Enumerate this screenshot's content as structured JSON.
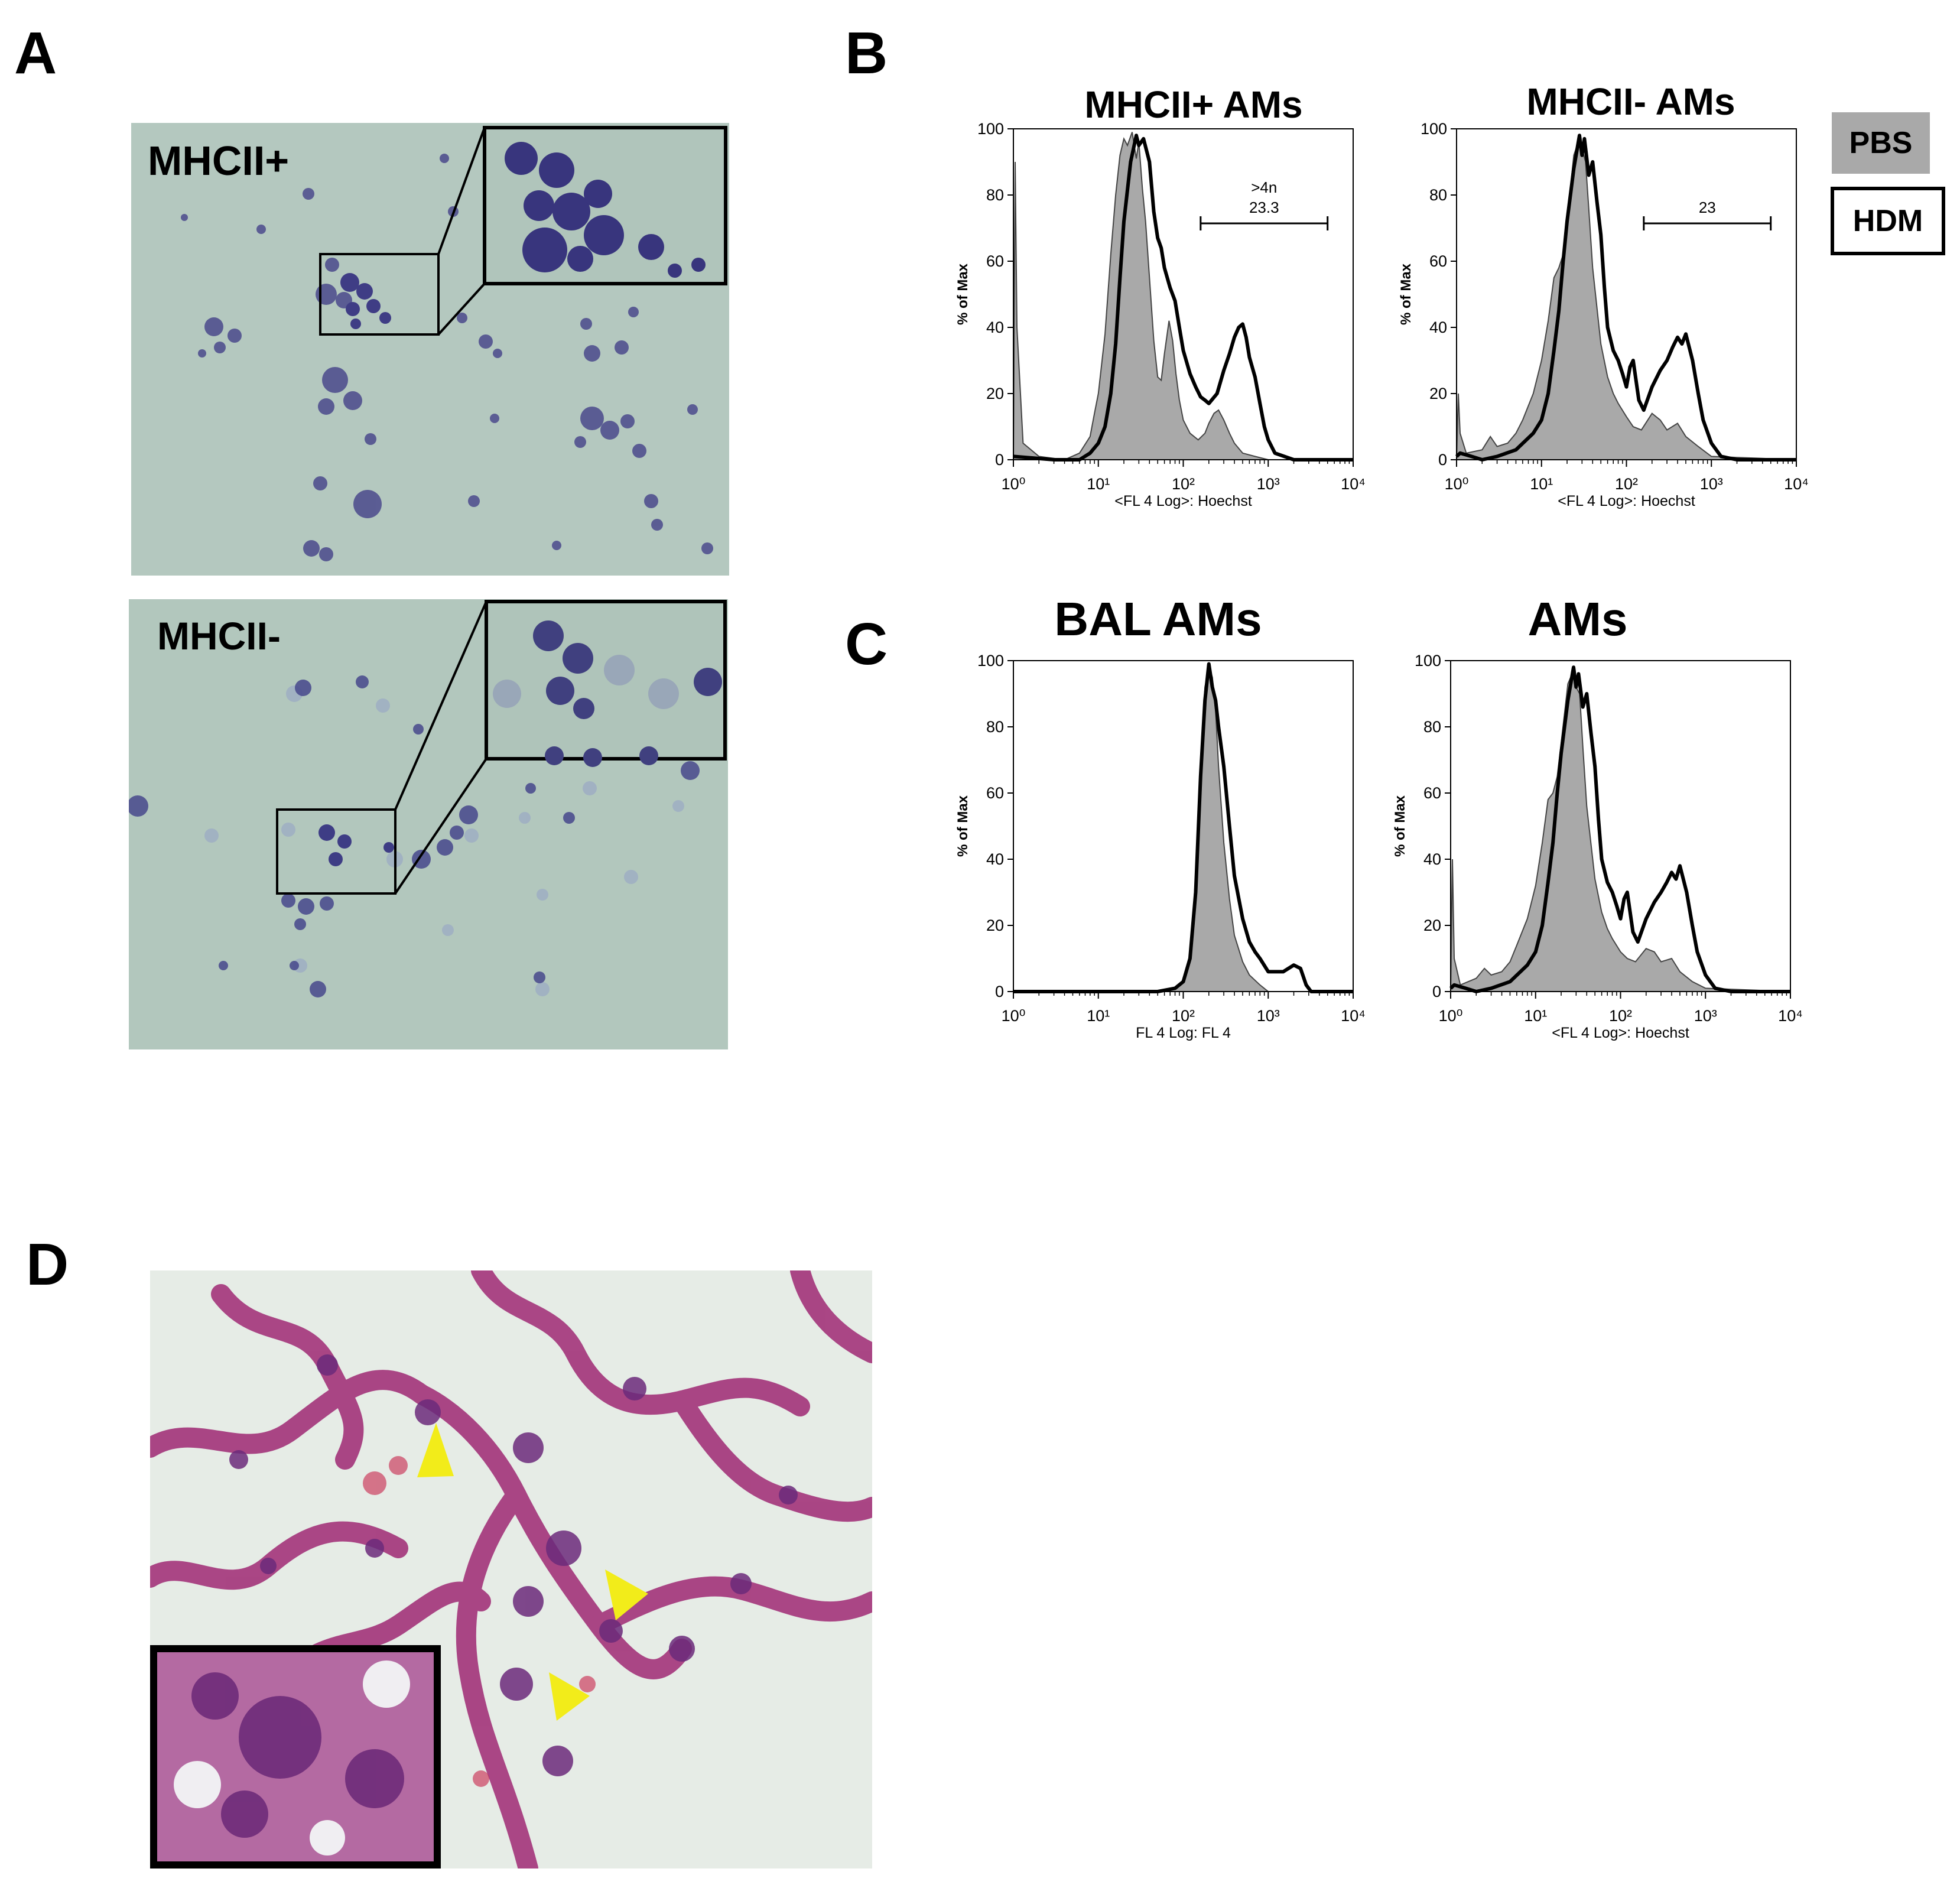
{
  "panels": {
    "a": {
      "letter": "A",
      "top_label": "MHCII+",
      "bottom_label": "MHCII-"
    },
    "b": {
      "letter": "B"
    },
    "c": {
      "letter": "C"
    },
    "d": {
      "letter": "D"
    }
  },
  "legend": {
    "pbs_label": "PBS",
    "hdm_label": "HDM",
    "pbs_color": "#a9a9a9",
    "hdm_color": "#000000"
  },
  "chart_data": [
    {
      "type": "area",
      "panel": "B",
      "title": "MHCII+ AMs",
      "xlabel": "<FL 4 Log>: Hoechst",
      "ylabel": "% of Max",
      "xscale": "log",
      "xlim": [
        1,
        10000
      ],
      "ylim": [
        0,
        100
      ],
      "y_ticks": [
        "0",
        "20",
        "40",
        "60",
        "80",
        "100"
      ],
      "gate": {
        "label_line1": ">4n",
        "label_line2": "23.3",
        "range": [
          160,
          5000
        ]
      },
      "series": [
        {
          "name": "PBS",
          "style": "filled",
          "x": [
            1,
            1.05,
            1.1,
            1.3,
            2,
            4,
            6,
            8,
            9,
            10,
            12,
            14,
            16,
            18,
            20,
            22,
            25,
            28,
            30,
            33,
            36,
            40,
            45,
            50,
            55,
            60,
            68,
            75,
            82,
            90,
            100,
            120,
            150,
            180,
            200,
            230,
            260,
            300,
            350,
            400,
            500,
            700,
            1000,
            2000,
            10000
          ],
          "y": [
            0,
            90,
            40,
            5,
            1,
            0,
            2,
            7,
            14,
            20,
            38,
            62,
            80,
            92,
            97,
            95,
            99,
            91,
            96,
            82,
            72,
            55,
            36,
            25,
            24,
            32,
            42,
            36,
            26,
            18,
            12,
            8,
            6,
            8,
            11,
            14,
            15,
            12,
            8,
            5,
            2,
            1,
            0,
            0,
            0
          ]
        },
        {
          "name": "HDM",
          "style": "line",
          "x": [
            1,
            3,
            6,
            8,
            10,
            12,
            14,
            16,
            18,
            20,
            24,
            28,
            30,
            34,
            40,
            45,
            50,
            55,
            60,
            70,
            80,
            90,
            100,
            120,
            140,
            160,
            180,
            200,
            250,
            300,
            350,
            400,
            450,
            500,
            550,
            600,
            700,
            800,
            900,
            1000,
            1200,
            2000,
            10000
          ],
          "y": [
            1,
            0,
            0,
            2,
            5,
            10,
            20,
            35,
            55,
            72,
            90,
            98,
            95,
            97,
            90,
            75,
            67,
            64,
            58,
            52,
            48,
            40,
            33,
            26,
            22,
            19,
            18,
            17,
            20,
            27,
            32,
            37,
            40,
            41,
            37,
            31,
            25,
            17,
            10,
            6,
            2,
            0,
            0
          ]
        }
      ]
    },
    {
      "type": "area",
      "panel": "B",
      "title": "MHCII- AMs",
      "xlabel": "<FL 4 Log>: Hoechst",
      "ylabel": "% of Max",
      "xscale": "log",
      "xlim": [
        1,
        10000
      ],
      "ylim": [
        0,
        100
      ],
      "y_ticks": [
        "0",
        "20",
        "40",
        "60",
        "80",
        "100"
      ],
      "gate": {
        "label_line1": "23",
        "label_line2": "",
        "range": [
          160,
          5000
        ]
      },
      "series": [
        {
          "name": "PBS",
          "style": "filled",
          "x": [
            1,
            1.05,
            1.1,
            1.3,
            2,
            2.5,
            3,
            4,
            5,
            6,
            8,
            10,
            12,
            14,
            16,
            18,
            20,
            24,
            28,
            30,
            33,
            36,
            40,
            50,
            60,
            70,
            80,
            100,
            120,
            150,
            200,
            250,
            300,
            400,
            500,
            700,
            1000,
            10000
          ],
          "y": [
            0,
            20,
            8,
            2,
            3,
            7,
            4,
            5,
            8,
            12,
            20,
            30,
            42,
            55,
            58,
            62,
            72,
            92,
            97,
            94,
            90,
            76,
            58,
            35,
            25,
            20,
            17,
            13,
            10,
            9,
            14,
            12,
            9,
            11,
            7,
            4,
            1,
            0
          ]
        },
        {
          "name": "HDM",
          "style": "line",
          "x": [
            1,
            1.1,
            1.5,
            2,
            3,
            5,
            8,
            10,
            12,
            14,
            16,
            18,
            20,
            24,
            28,
            30,
            32,
            36,
            40,
            45,
            50,
            55,
            60,
            70,
            80,
            90,
            100,
            110,
            120,
            140,
            160,
            200,
            250,
            300,
            350,
            400,
            450,
            500,
            600,
            700,
            800,
            1000,
            1300,
            2000,
            10000
          ],
          "y": [
            1,
            2,
            1,
            0,
            1,
            3,
            8,
            12,
            20,
            33,
            45,
            60,
            72,
            88,
            98,
            92,
            97,
            86,
            90,
            78,
            68,
            52,
            40,
            33,
            30,
            26,
            22,
            28,
            30,
            18,
            15,
            22,
            27,
            30,
            34,
            37,
            35,
            38,
            30,
            20,
            12,
            5,
            1,
            0,
            0
          ]
        }
      ]
    },
    {
      "type": "area",
      "panel": "C",
      "title": "BAL AMs",
      "xlabel": "FL 4 Log: FL 4",
      "ylabel": "% of Max",
      "xscale": "log",
      "xlim": [
        1,
        10000
      ],
      "ylim": [
        0,
        100
      ],
      "y_ticks": [
        "0",
        "20",
        "40",
        "60",
        "80",
        "100"
      ],
      "series": [
        {
          "name": "PBS",
          "style": "filled",
          "x": [
            1,
            50,
            80,
            100,
            120,
            140,
            160,
            180,
            200,
            220,
            240,
            260,
            300,
            350,
            400,
            500,
            600,
            800,
            1000,
            10000
          ],
          "y": [
            0,
            0,
            1,
            3,
            10,
            35,
            70,
            92,
            98,
            95,
            85,
            68,
            45,
            28,
            17,
            9,
            5,
            2,
            0,
            0
          ]
        },
        {
          "name": "HDM",
          "style": "line",
          "x": [
            1,
            50,
            80,
            100,
            120,
            140,
            160,
            180,
            200,
            220,
            240,
            260,
            300,
            350,
            400,
            500,
            600,
            700,
            800,
            1000,
            1500,
            2000,
            2400,
            2800,
            3200,
            10000
          ],
          "y": [
            0,
            0,
            1,
            3,
            10,
            30,
            65,
            88,
            99,
            92,
            88,
            80,
            68,
            50,
            35,
            22,
            15,
            12,
            10,
            6,
            6,
            8,
            7,
            2,
            0,
            0
          ]
        }
      ]
    },
    {
      "type": "area",
      "panel": "C",
      "title": "AMs",
      "xlabel": "<FL 4 Log>: Hoechst",
      "ylabel": "% of Max",
      "xscale": "log",
      "xlim": [
        1,
        10000
      ],
      "ylim": [
        0,
        100
      ],
      "y_ticks": [
        "0",
        "20",
        "40",
        "60",
        "80",
        "100"
      ],
      "series": [
        {
          "name": "PBS",
          "style": "filled",
          "x": [
            1,
            1.05,
            1.1,
            1.3,
            2,
            2.5,
            3,
            4,
            5,
            6,
            8,
            10,
            12,
            14,
            16,
            18,
            20,
            24,
            28,
            30,
            33,
            36,
            40,
            50,
            60,
            70,
            80,
            100,
            120,
            150,
            200,
            250,
            300,
            400,
            500,
            700,
            1000,
            10000
          ],
          "y": [
            0,
            40,
            10,
            2,
            4,
            7,
            5,
            6,
            9,
            14,
            22,
            32,
            45,
            58,
            60,
            65,
            75,
            93,
            97,
            92,
            90,
            74,
            56,
            34,
            24,
            19,
            16,
            12,
            10,
            9,
            13,
            12,
            9,
            10,
            6,
            3,
            1,
            0
          ]
        },
        {
          "name": "HDM",
          "style": "line",
          "x": [
            1,
            1.1,
            1.5,
            2,
            3,
            5,
            8,
            10,
            12,
            14,
            16,
            18,
            20,
            24,
            28,
            30,
            32,
            36,
            40,
            45,
            50,
            55,
            60,
            70,
            80,
            90,
            100,
            110,
            120,
            140,
            160,
            200,
            250,
            300,
            350,
            400,
            450,
            500,
            600,
            700,
            800,
            1000,
            1300,
            2000,
            10000
          ],
          "y": [
            1,
            2,
            1,
            0,
            1,
            3,
            8,
            12,
            20,
            33,
            45,
            60,
            72,
            88,
            98,
            92,
            96,
            86,
            90,
            78,
            68,
            52,
            40,
            33,
            30,
            26,
            22,
            28,
            30,
            18,
            15,
            22,
            27,
            30,
            33,
            36,
            34,
            38,
            30,
            20,
            12,
            5,
            1,
            0,
            0
          ]
        }
      ]
    }
  ]
}
